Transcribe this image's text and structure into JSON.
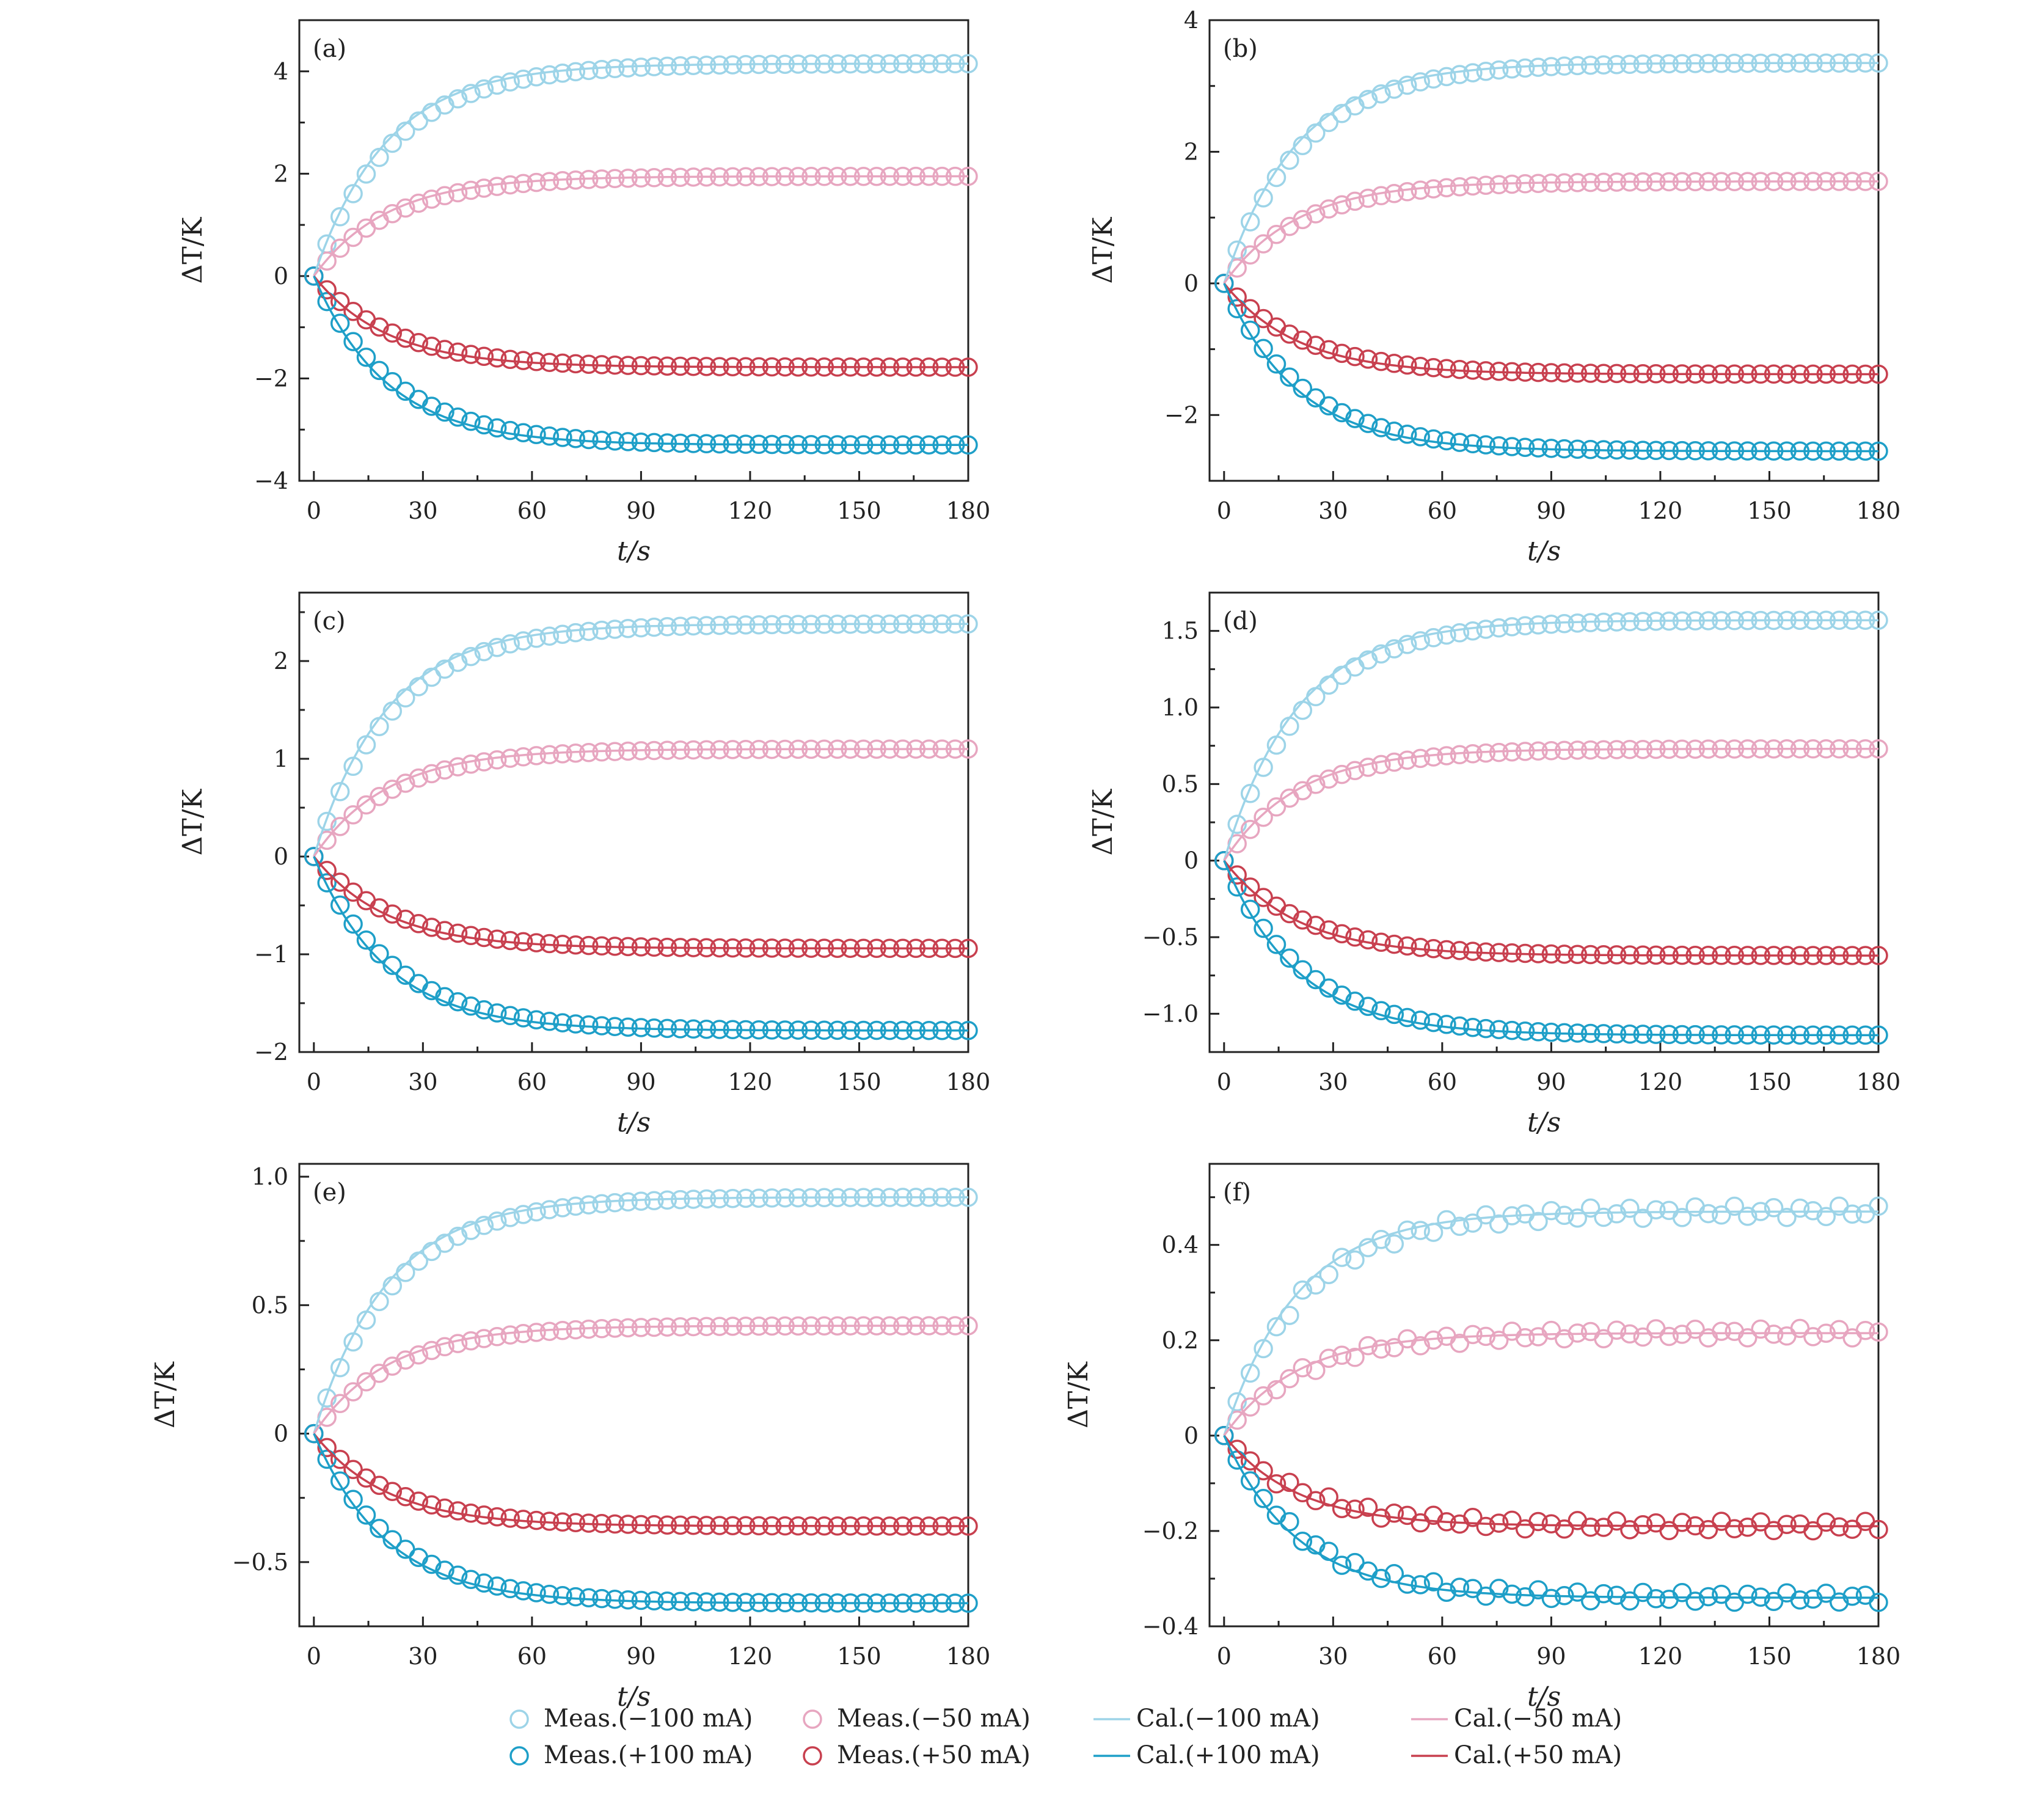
{
  "colors": {
    "meas_neg100": "#9dd4e8",
    "meas_pos100": "#1e9fc8",
    "meas_neg50": "#e7a6c0",
    "meas_pos50": "#c8404f",
    "cal_neg100": "#9dd4e8",
    "cal_pos100": "#1e9fc8",
    "cal_neg50": "#e7a6c0",
    "cal_pos50": "#c8404f"
  },
  "legend": [
    {
      "label": "Meas.(−100 mA)",
      "kind": "marker",
      "color_key": "meas_neg100"
    },
    {
      "label": "Meas.(−50 mA)",
      "kind": "marker",
      "color_key": "meas_neg50"
    },
    {
      "label": "Cal.(−100 mA)",
      "kind": "line",
      "color_key": "cal_neg100"
    },
    {
      "label": "Cal.(−50 mA)",
      "kind": "line",
      "color_key": "cal_neg50"
    },
    {
      "label": "Meas.(+100 mA)",
      "kind": "marker",
      "color_key": "meas_pos100"
    },
    {
      "label": "Meas.(+50 mA)",
      "kind": "marker",
      "color_key": "meas_pos50"
    },
    {
      "label": "Cal.(+100 mA)",
      "kind": "line",
      "color_key": "cal_pos100"
    },
    {
      "label": "Cal.(+50 mA)",
      "kind": "line",
      "color_key": "cal_pos50"
    }
  ],
  "chart_data": [
    {
      "type": "scatter",
      "panel_label": "(a)",
      "xlabel": "t/s",
      "ylabel": "ΔT/K",
      "xlim": [
        -4,
        180
      ],
      "ylim": [
        -4,
        5
      ],
      "xticks": [
        0,
        30,
        60,
        90,
        120,
        150,
        180
      ],
      "yticks": [
        -4,
        -2,
        0,
        2,
        4
      ],
      "ytick_labels": [
        "−4",
        "−2",
        "0",
        "2",
        "4"
      ],
      "series": [
        {
          "name": "Meas.(−100 mA)",
          "kind": "meas",
          "color_key": "meas_neg100",
          "final": 4.15,
          "tau": 22
        },
        {
          "name": "Meas.(−50 mA)",
          "kind": "meas",
          "color_key": "meas_neg50",
          "final": 1.95,
          "tau": 22
        },
        {
          "name": "Meas.(+50 mA)",
          "kind": "meas",
          "color_key": "meas_pos50",
          "final": -1.78,
          "tau": 22
        },
        {
          "name": "Meas.(+100 mA)",
          "kind": "meas",
          "color_key": "meas_pos100",
          "final": -3.3,
          "tau": 22
        },
        {
          "name": "Cal.(−100 mA)",
          "kind": "cal",
          "color_key": "cal_neg100",
          "final": 4.15,
          "tau": 20
        },
        {
          "name": "Cal.(−50 mA)",
          "kind": "cal",
          "color_key": "cal_neg50",
          "final": 1.95,
          "tau": 20
        },
        {
          "name": "Cal.(+50 mA)",
          "kind": "cal",
          "color_key": "cal_pos50",
          "final": -1.78,
          "tau": 20
        },
        {
          "name": "Cal.(+100 mA)",
          "kind": "cal",
          "color_key": "cal_pos100",
          "final": -3.3,
          "tau": 20
        }
      ]
    },
    {
      "type": "scatter",
      "panel_label": "(b)",
      "xlabel": "t/s",
      "ylabel": "ΔT/K",
      "xlim": [
        -4,
        180
      ],
      "ylim": [
        -3,
        4
      ],
      "xticks": [
        0,
        30,
        60,
        90,
        120,
        150,
        180
      ],
      "yticks": [
        -2,
        0,
        2,
        4
      ],
      "ytick_labels": [
        "−2",
        "0",
        "2",
        "4"
      ],
      "series": [
        {
          "name": "Meas.(−100 mA)",
          "kind": "meas",
          "color_key": "meas_neg100",
          "final": 3.35,
          "tau": 22
        },
        {
          "name": "Meas.(−50 mA)",
          "kind": "meas",
          "color_key": "meas_neg50",
          "final": 1.55,
          "tau": 22
        },
        {
          "name": "Meas.(+50 mA)",
          "kind": "meas",
          "color_key": "meas_pos50",
          "final": -1.38,
          "tau": 22
        },
        {
          "name": "Meas.(+100 mA)",
          "kind": "meas",
          "color_key": "meas_pos100",
          "final": -2.55,
          "tau": 22
        },
        {
          "name": "Cal.(−100 mA)",
          "kind": "cal",
          "color_key": "cal_neg100",
          "final": 3.35,
          "tau": 20
        },
        {
          "name": "Cal.(−50 mA)",
          "kind": "cal",
          "color_key": "cal_neg50",
          "final": 1.55,
          "tau": 20
        },
        {
          "name": "Cal.(+50 mA)",
          "kind": "cal",
          "color_key": "cal_pos50",
          "final": -1.38,
          "tau": 20
        },
        {
          "name": "Cal.(+100 mA)",
          "kind": "cal",
          "color_key": "cal_pos100",
          "final": -2.55,
          "tau": 20
        }
      ]
    },
    {
      "type": "scatter",
      "panel_label": "(c)",
      "xlabel": "t/s",
      "ylabel": "ΔT/K",
      "xlim": [
        -4,
        180
      ],
      "ylim": [
        -2,
        2.7
      ],
      "xticks": [
        0,
        30,
        60,
        90,
        120,
        150,
        180
      ],
      "yticks": [
        -2,
        -1,
        0,
        1,
        2
      ],
      "ytick_labels": [
        "−2",
        "−1",
        "0",
        "1",
        "2"
      ],
      "series": [
        {
          "name": "Meas.(−100 mA)",
          "kind": "meas",
          "color_key": "meas_neg100",
          "final": 2.38,
          "tau": 22
        },
        {
          "name": "Meas.(−50 mA)",
          "kind": "meas",
          "color_key": "meas_neg50",
          "final": 1.1,
          "tau": 22
        },
        {
          "name": "Meas.(+50 mA)",
          "kind": "meas",
          "color_key": "meas_pos50",
          "final": -0.94,
          "tau": 22
        },
        {
          "name": "Meas.(+100 mA)",
          "kind": "meas",
          "color_key": "meas_pos100",
          "final": -1.78,
          "tau": 22
        },
        {
          "name": "Cal.(−100 mA)",
          "kind": "cal",
          "color_key": "cal_neg100",
          "final": 2.38,
          "tau": 20
        },
        {
          "name": "Cal.(−50 mA)",
          "kind": "cal",
          "color_key": "cal_neg50",
          "final": 1.1,
          "tau": 20
        },
        {
          "name": "Cal.(+50 mA)",
          "kind": "cal",
          "color_key": "cal_pos50",
          "final": -0.94,
          "tau": 20
        },
        {
          "name": "Cal.(+100 mA)",
          "kind": "cal",
          "color_key": "cal_pos100",
          "final": -1.78,
          "tau": 20
        }
      ]
    },
    {
      "type": "scatter",
      "panel_label": "(d)",
      "xlabel": "t/s",
      "ylabel": "ΔT/K",
      "xlim": [
        -4,
        180
      ],
      "ylim": [
        -1.25,
        1.75
      ],
      "xticks": [
        0,
        30,
        60,
        90,
        120,
        150,
        180
      ],
      "yticks": [
        -1.0,
        -0.5,
        0,
        0.5,
        1.0,
        1.5
      ],
      "ytick_labels": [
        "−1.0",
        "−0.5",
        "0",
        "0.5",
        "1.0",
        "1.5"
      ],
      "series": [
        {
          "name": "Meas.(−100 mA)",
          "kind": "meas",
          "color_key": "meas_neg100",
          "final": 1.57,
          "tau": 22
        },
        {
          "name": "Meas.(−50 mA)",
          "kind": "meas",
          "color_key": "meas_neg50",
          "final": 0.73,
          "tau": 22
        },
        {
          "name": "Meas.(+50 mA)",
          "kind": "meas",
          "color_key": "meas_pos50",
          "final": -0.62,
          "tau": 22
        },
        {
          "name": "Meas.(+100 mA)",
          "kind": "meas",
          "color_key": "meas_pos100",
          "final": -1.14,
          "tau": 22
        },
        {
          "name": "Cal.(−100 mA)",
          "kind": "cal",
          "color_key": "cal_neg100",
          "final": 1.57,
          "tau": 20
        },
        {
          "name": "Cal.(−50 mA)",
          "kind": "cal",
          "color_key": "cal_neg50",
          "final": 0.73,
          "tau": 20
        },
        {
          "name": "Cal.(+50 mA)",
          "kind": "cal",
          "color_key": "cal_pos50",
          "final": -0.62,
          "tau": 20
        },
        {
          "name": "Cal.(+100 mA)",
          "kind": "cal",
          "color_key": "cal_pos100",
          "final": -1.14,
          "tau": 20
        }
      ]
    },
    {
      "type": "scatter",
      "panel_label": "(e)",
      "xlabel": "t/s",
      "ylabel": "ΔT/K",
      "xlim": [
        -4,
        180
      ],
      "ylim": [
        -0.75,
        1.05
      ],
      "xticks": [
        0,
        30,
        60,
        90,
        120,
        150,
        180
      ],
      "yticks": [
        -0.5,
        0,
        0.5,
        1.0
      ],
      "ytick_labels": [
        "−0.5",
        "0",
        "0.5",
        "1.0"
      ],
      "series": [
        {
          "name": "Meas.(−100 mA)",
          "kind": "meas",
          "color_key": "meas_neg100",
          "final": 0.92,
          "tau": 22
        },
        {
          "name": "Meas.(−50 mA)",
          "kind": "meas",
          "color_key": "meas_neg50",
          "final": 0.42,
          "tau": 22
        },
        {
          "name": "Meas.(+50 mA)",
          "kind": "meas",
          "color_key": "meas_pos50",
          "final": -0.36,
          "tau": 22
        },
        {
          "name": "Meas.(+100 mA)",
          "kind": "meas",
          "color_key": "meas_pos100",
          "final": -0.66,
          "tau": 22
        },
        {
          "name": "Cal.(−100 mA)",
          "kind": "cal",
          "color_key": "cal_neg100",
          "final": 0.92,
          "tau": 20
        },
        {
          "name": "Cal.(−50 mA)",
          "kind": "cal",
          "color_key": "cal_neg50",
          "final": 0.42,
          "tau": 20
        },
        {
          "name": "Cal.(+50 mA)",
          "kind": "cal",
          "color_key": "cal_pos50",
          "final": -0.36,
          "tau": 20
        },
        {
          "name": "Cal.(+100 mA)",
          "kind": "cal",
          "color_key": "cal_pos100",
          "final": -0.66,
          "tau": 20
        }
      ]
    },
    {
      "type": "scatter",
      "panel_label": "(f)",
      "xlabel": "t/s",
      "ylabel": "ΔT/K",
      "xlim": [
        -4,
        180
      ],
      "ylim": [
        -0.4,
        0.57
      ],
      "xticks": [
        0,
        30,
        60,
        90,
        120,
        150,
        180
      ],
      "yticks": [
        -0.4,
        -0.2,
        0,
        0.2,
        0.4
      ],
      "ytick_labels": [
        "−0.4",
        "−0.2",
        "0",
        "0.2",
        "0.4"
      ],
      "series": [
        {
          "name": "Meas.(−100 mA)",
          "kind": "meas",
          "color_key": "meas_neg100",
          "final": 0.47,
          "tau": 22,
          "noise": 0.012
        },
        {
          "name": "Meas.(−50 mA)",
          "kind": "meas",
          "color_key": "meas_neg50",
          "final": 0.215,
          "tau": 22,
          "noise": 0.01
        },
        {
          "name": "Meas.(+50 mA)",
          "kind": "meas",
          "color_key": "meas_pos50",
          "final": -0.19,
          "tau": 22,
          "noise": 0.01
        },
        {
          "name": "Meas.(+100 mA)",
          "kind": "meas",
          "color_key": "meas_pos100",
          "final": -0.34,
          "tau": 22,
          "noise": 0.01
        },
        {
          "name": "Cal.(−100 mA)",
          "kind": "cal",
          "color_key": "cal_neg100",
          "final": 0.47,
          "tau": 20
        },
        {
          "name": "Cal.(−50 mA)",
          "kind": "cal",
          "color_key": "cal_neg50",
          "final": 0.215,
          "tau": 20
        },
        {
          "name": "Cal.(+50 mA)",
          "kind": "cal",
          "color_key": "cal_pos50",
          "final": -0.19,
          "tau": 20
        },
        {
          "name": "Cal.(+100 mA)",
          "kind": "cal",
          "color_key": "cal_pos100",
          "final": -0.34,
          "tau": 20
        }
      ]
    }
  ]
}
